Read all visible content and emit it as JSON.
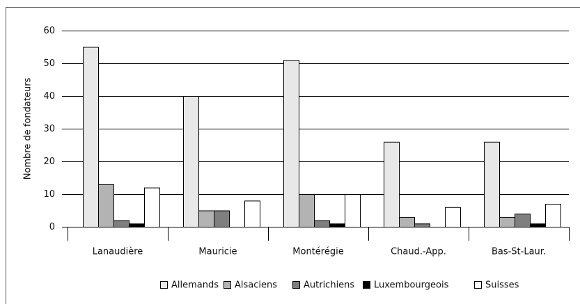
{
  "chart_data": {
    "type": "bar",
    "y_label": "Nombre de fondateurs",
    "categories": [
      "Lanaudière",
      "Mauricie",
      "Montérégie",
      "Chaud.-App.",
      "Bas-St-Laur."
    ],
    "series": [
      {
        "name": "Allemands",
        "color": "#e8e8e8",
        "values": [
          55,
          40,
          51,
          26,
          26
        ]
      },
      {
        "name": "Alsaciens",
        "color": "#b3b3b3",
        "values": [
          13,
          5,
          10,
          3,
          3
        ]
      },
      {
        "name": "Autrichiens",
        "color": "#7f7f7f",
        "values": [
          2,
          5,
          2,
          1,
          4
        ]
      },
      {
        "name": "Luxembourgeois",
        "color": "#000000",
        "values": [
          1,
          0,
          1,
          0,
          1
        ]
      },
      {
        "name": "Suisses",
        "color": "#ffffff",
        "values": [
          12,
          8,
          10,
          6,
          7
        ]
      }
    ],
    "ylim": [
      0,
      60
    ],
    "yticks": [
      0,
      10,
      20,
      30,
      40,
      50,
      60
    ],
    "grid": true,
    "legend": "bottom"
  }
}
